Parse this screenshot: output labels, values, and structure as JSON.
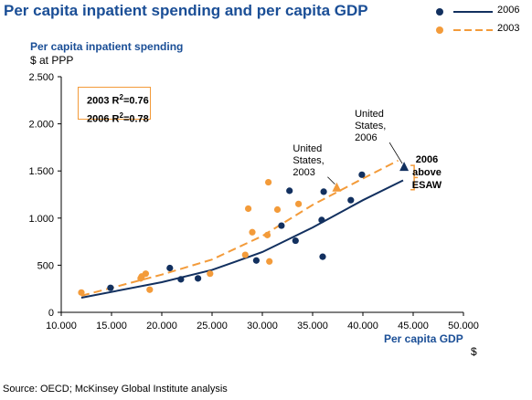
{
  "chart_data": {
    "type": "scatter",
    "title": "Per capita inpatient spending and per capita GDP",
    "ylabel": "Per capita inpatient spending",
    "yunit": "$ at PPP",
    "xlabel": "Per capita GDP",
    "xunit": "$",
    "xlim": [
      10000,
      50000
    ],
    "ylim": [
      0,
      2500
    ],
    "x_ticks": [
      10000,
      15000,
      20000,
      25000,
      30000,
      35000,
      40000,
      45000,
      50000
    ],
    "x_tick_labels": [
      "10.000",
      "15.000",
      "20.000",
      "25.000",
      "30.000",
      "35.000",
      "40.000",
      "45.000",
      "50.000"
    ],
    "y_ticks": [
      0,
      500,
      1000,
      1500,
      2000,
      2500
    ],
    "y_tick_labels": [
      "0",
      "500",
      "1.000",
      "1.500",
      "2.000",
      "2.500"
    ],
    "series": [
      {
        "name": "2006",
        "color": "#12305f",
        "marker": "circle",
        "points": [
          [
            14900,
            260
          ],
          [
            20800,
            470
          ],
          [
            21900,
            350
          ],
          [
            23600,
            360
          ],
          [
            29400,
            550
          ],
          [
            31900,
            920
          ],
          [
            32700,
            1290
          ],
          [
            33300,
            760
          ],
          [
            35900,
            980
          ],
          [
            36100,
            1280
          ],
          [
            36000,
            590
          ],
          [
            38800,
            1190
          ],
          [
            39900,
            1460
          ]
        ],
        "trend": [
          [
            12000,
            155
          ],
          [
            20000,
            320
          ],
          [
            25000,
            450
          ],
          [
            30000,
            640
          ],
          [
            35000,
            900
          ],
          [
            40000,
            1190
          ],
          [
            44000,
            1400
          ]
        ]
      },
      {
        "name": "2003",
        "color": "#f39b3a",
        "marker": "circle",
        "points": [
          [
            12000,
            210
          ],
          [
            17900,
            360
          ],
          [
            18000,
            380
          ],
          [
            18400,
            410
          ],
          [
            18800,
            240
          ],
          [
            24800,
            410
          ],
          [
            28300,
            610
          ],
          [
            28600,
            1100
          ],
          [
            29000,
            850
          ],
          [
            30500,
            820
          ],
          [
            30600,
            1380
          ],
          [
            30700,
            540
          ],
          [
            31500,
            1090
          ],
          [
            33600,
            1150
          ]
        ],
        "trend": [
          [
            12000,
            175
          ],
          [
            20000,
            400
          ],
          [
            25000,
            560
          ],
          [
            30000,
            810
          ],
          [
            35000,
            1140
          ],
          [
            40000,
            1420
          ],
          [
            43500,
            1610
          ]
        ]
      }
    ],
    "r2": {
      "line1": "2003 R²=0.76",
      "line1_prefix": "2003 R",
      "line1_suffix": "=0.76",
      "line2_prefix": "2006 R",
      "line2_suffix": "=0.78",
      "sup": "2"
    },
    "annotations": [
      {
        "text_lines": [
          "United",
          "States,",
          "2003"
        ],
        "point": [
          37400,
          1320
        ],
        "marker": "triangle",
        "color": "#f39b3a"
      },
      {
        "text_lines": [
          "United",
          "States,",
          "2006"
        ],
        "point": [
          44100,
          1540
        ],
        "marker": "triangle",
        "color": "#12305f"
      }
    ],
    "bracket_note": [
      "2006",
      "above",
      "ESAW"
    ],
    "legend": {
      "placement": "top-right",
      "items": [
        {
          "label": "2006",
          "color": "#12305f",
          "dash": false
        },
        {
          "label": "2003",
          "color": "#f39b3a",
          "dash": true
        }
      ]
    },
    "grid": false
  },
  "source": "Source: OECD; McKinsey Global Institute analysis"
}
